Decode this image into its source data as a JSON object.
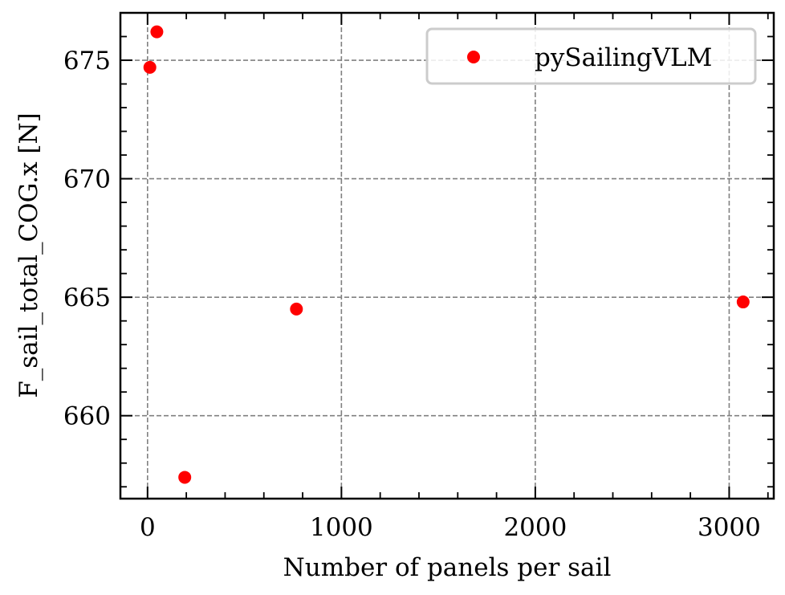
{
  "chart_data": {
    "type": "scatter",
    "xlabel": "Number of panels per sail",
    "ylabel": "F_sail_total_COG.x [N]",
    "xlim": [
      -140,
      3230
    ],
    "ylim": [
      656.5,
      677.0
    ],
    "xticks": [
      0,
      1000,
      2000,
      3000
    ],
    "yticks": [
      660,
      665,
      670,
      675
    ],
    "xtick_labels": [
      "0",
      "1000",
      "2000",
      "3000"
    ],
    "ytick_labels": [
      "660",
      "665",
      "670",
      "675"
    ],
    "x_minor_step": 200,
    "y_minor_step": 1,
    "grid": true,
    "legend_position": "top-right",
    "series": [
      {
        "name": "pySailingVLM",
        "color": "#ff0000",
        "x": [
          12,
          48,
          192,
          768,
          3072
        ],
        "y": [
          674.7,
          676.2,
          657.4,
          664.5,
          664.8
        ]
      }
    ]
  }
}
